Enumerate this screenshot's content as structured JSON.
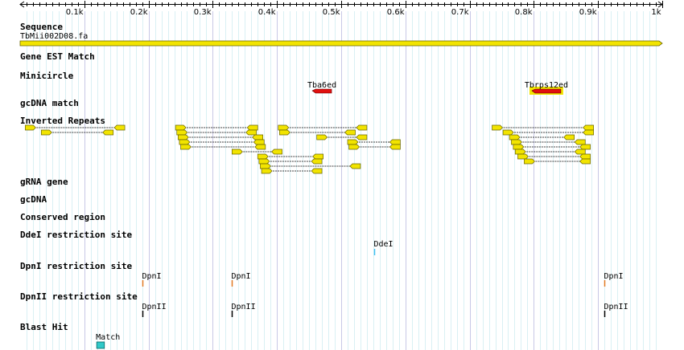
{
  "ruler": {
    "min": 0,
    "max": 1000,
    "ticks": [
      {
        "value": 100,
        "label": "0.1k"
      },
      {
        "value": 200,
        "label": "0.2k"
      },
      {
        "value": 300,
        "label": "0.3k"
      },
      {
        "value": 400,
        "label": "0.4k"
      },
      {
        "value": 500,
        "label": "0.5k"
      },
      {
        "value": 600,
        "label": "0.6k"
      },
      {
        "value": 700,
        "label": "0.7k"
      },
      {
        "value": 800,
        "label": "0.8k"
      },
      {
        "value": 900,
        "label": "0.9k"
      },
      {
        "value": 1000,
        "label": "1k"
      }
    ]
  },
  "tracks": {
    "sequence": {
      "label": "Sequence",
      "name": "TbMii002D08.fa",
      "start": 0,
      "end": 1000,
      "color": "#f2e400"
    },
    "gene_est": {
      "label": "Gene EST Match"
    },
    "minicircle": {
      "label": "Minicircle",
      "features": [
        {
          "name": "Tba6ed",
          "start": 455,
          "end": 485,
          "color": "#e01010",
          "highlight": false
        },
        {
          "name": "Tbrps12ed",
          "start": 797,
          "end": 842,
          "color": "#e01010",
          "highlight": true,
          "highlight_color": "#f2e400"
        }
      ]
    },
    "gcdna_match": {
      "label": "gcDNA match"
    },
    "inverted_repeats": {
      "label": "Inverted Repeats",
      "color": "#f2e400",
      "pairs": [
        {
          "a": 8,
          "b": 163,
          "row": 0
        },
        {
          "a": 33,
          "b": 145,
          "row": 1
        },
        {
          "a": 242,
          "b": 370,
          "row": 0
        },
        {
          "a": 244,
          "b": 368,
          "row": 1
        },
        {
          "a": 246,
          "b": 378,
          "row": 2
        },
        {
          "a": 248,
          "b": 380,
          "row": 3
        },
        {
          "a": 250,
          "b": 382,
          "row": 4
        },
        {
          "a": 402,
          "b": 540,
          "row": 0
        },
        {
          "a": 404,
          "b": 522,
          "row": 1
        },
        {
          "a": 462,
          "b": 540,
          "row": 2
        },
        {
          "a": 510,
          "b": 592,
          "row": 3
        },
        {
          "a": 512,
          "b": 592,
          "row": 4
        },
        {
          "a": 330,
          "b": 408,
          "row": 5
        },
        {
          "a": 370,
          "b": 472,
          "row": 6
        },
        {
          "a": 372,
          "b": 470,
          "row": 7
        },
        {
          "a": 374,
          "b": 530,
          "row": 8
        },
        {
          "a": 376,
          "b": 470,
          "row": 9
        },
        {
          "a": 735,
          "b": 893,
          "row": 0
        },
        {
          "a": 752,
          "b": 893,
          "row": 1
        },
        {
          "a": 762,
          "b": 863,
          "row": 2
        },
        {
          "a": 765,
          "b": 880,
          "row": 3
        },
        {
          "a": 768,
          "b": 888,
          "row": 4
        },
        {
          "a": 771,
          "b": 880,
          "row": 5
        },
        {
          "a": 775,
          "b": 888,
          "row": 6
        },
        {
          "a": 785,
          "b": 888,
          "row": 7
        }
      ]
    },
    "grna_gene": {
      "label": "gRNA gene"
    },
    "gcdna": {
      "label": "gcDNA"
    },
    "conserved": {
      "label": "Conserved region"
    },
    "ddei": {
      "label": "DdeI restriction site",
      "color": "#40c0f0",
      "sites": [
        {
          "name": "DdeI",
          "pos": 552
        }
      ]
    },
    "dpni": {
      "label": "DpnI restriction site",
      "color": "#e07820",
      "sites": [
        {
          "name": "DpnI",
          "pos": 190
        },
        {
          "name": "DpnI",
          "pos": 330
        },
        {
          "name": "DpnI",
          "pos": 910
        }
      ]
    },
    "dpnii": {
      "label": "DpnII restriction site",
      "color": "#000000",
      "sites": [
        {
          "name": "DpnII",
          "pos": 190
        },
        {
          "name": "DpnII",
          "pos": 330
        },
        {
          "name": "DpnII",
          "pos": 910
        }
      ]
    },
    "blast": {
      "label": "Blast Hit",
      "color": "#30c8c8",
      "hits": [
        {
          "name": "Match",
          "start": 118,
          "end": 130
        }
      ]
    }
  }
}
